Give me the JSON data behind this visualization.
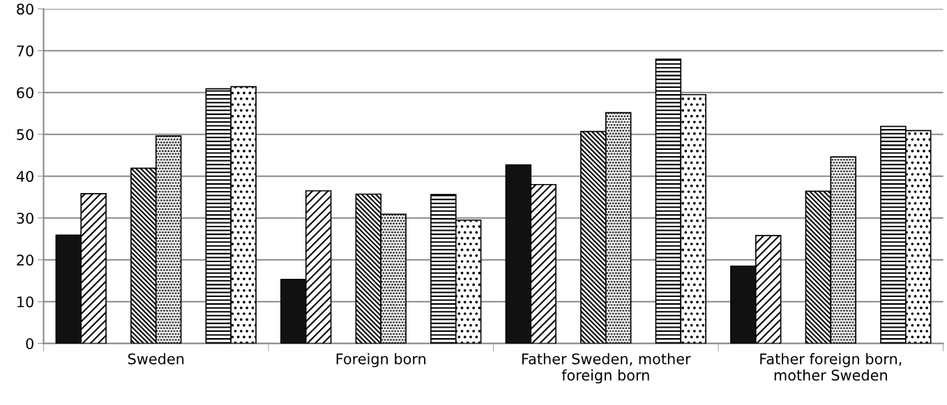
{
  "chart_data": {
    "type": "bar",
    "categories": [
      "Sweden",
      "Foreign born",
      "Father Sweden, mother\nforeign born",
      "Father foreign born,\nmother Sweden"
    ],
    "series": [
      {
        "color": "#111111",
        "values": [
          25.9,
          15.3,
          42.7,
          18.5
        ]
      },
      {
        "color": "#000000",
        "values": [
          35.8,
          36.5,
          38.0,
          25.8
        ]
      },
      {
        "values": [
          null,
          null,
          null,
          null
        ]
      },
      {
        "color": "#000000",
        "values": [
          41.9,
          35.7,
          50.7,
          36.4
        ]
      },
      {
        "color": "#000000",
        "values": [
          49.6,
          30.9,
          55.2,
          44.6
        ]
      },
      {
        "values": [
          null,
          null,
          null,
          null
        ]
      },
      {
        "color": "#000000",
        "values": [
          60.9,
          35.6,
          68.0,
          51.9
        ]
      },
      {
        "color": "#000000",
        "values": [
          61.4,
          29.5,
          59.5,
          50.9
        ]
      }
    ],
    "ylim": [
      0,
      80
    ],
    "yticks": [
      0,
      10,
      20,
      30,
      40,
      50,
      60,
      70,
      80
    ],
    "grid": "y",
    "legend": false
  }
}
